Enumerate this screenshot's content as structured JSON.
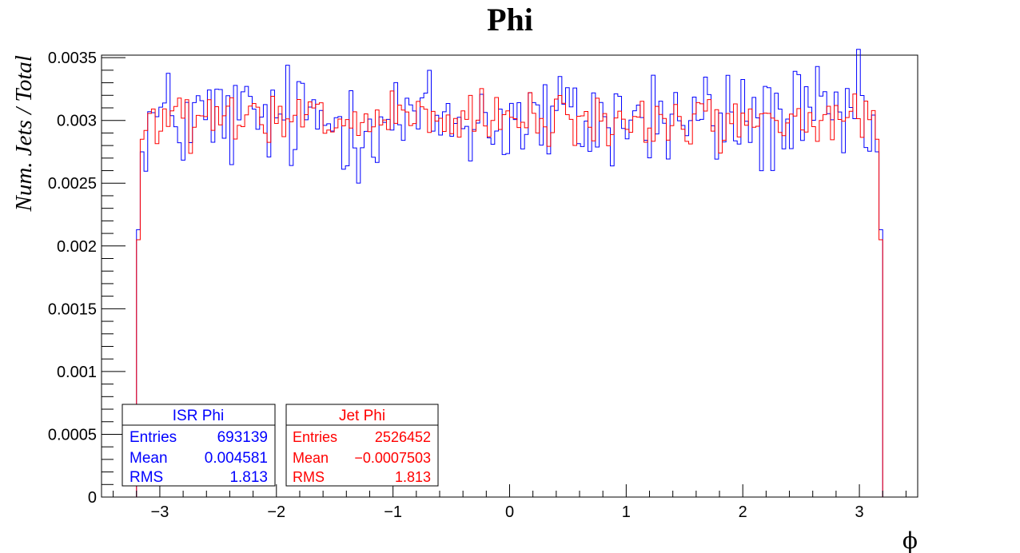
{
  "chart_data": {
    "type": "histogram",
    "title": "Phi",
    "xlabel": "ϕ",
    "ylabel": "Num. Jets / Total",
    "xlim": [
      -3.5,
      3.5
    ],
    "ylim": [
      0,
      0.00352
    ],
    "x_ticks": [
      -3,
      -2,
      -1,
      0,
      1,
      2,
      3
    ],
    "x_tick_labels": [
      "−3",
      "−2",
      "−1",
      "0",
      "1",
      "2",
      "3"
    ],
    "y_ticks": [
      0,
      0.0005,
      0.001,
      0.0015,
      0.002,
      0.0025,
      0.003,
      0.0035
    ],
    "y_tick_labels": [
      "0",
      "0.0005",
      "0.001",
      "0.0015",
      "0.002",
      "0.0025",
      "0.003",
      "0.0035"
    ],
    "grid": false,
    "binning": {
      "bins": 200,
      "xmin": -3.2,
      "xmax": 3.2
    },
    "series": [
      {
        "name": "ISR Phi",
        "color": "#0000ff",
        "edge_values": [
          0.00213,
          0.00275
        ],
        "bulk_mean": 0.003,
        "bulk_spread": 0.00022,
        "stats": {
          "entries_label": "Entries",
          "entries": "693139",
          "mean_label": "Mean",
          "mean": "0.004581",
          "rms_label": "RMS",
          "rms": "1.813"
        }
      },
      {
        "name": "Jet Phi",
        "color": "#ff0000",
        "edge_values": [
          0.00205,
          0.00285
        ],
        "bulk_mean": 0.00299,
        "bulk_spread": 0.00011,
        "stats": {
          "entries_label": "Entries",
          "entries": "2526452",
          "mean_label": "Mean",
          "mean": "−0.0007503",
          "rms_label": "RMS",
          "rms": "1.813"
        }
      }
    ]
  }
}
